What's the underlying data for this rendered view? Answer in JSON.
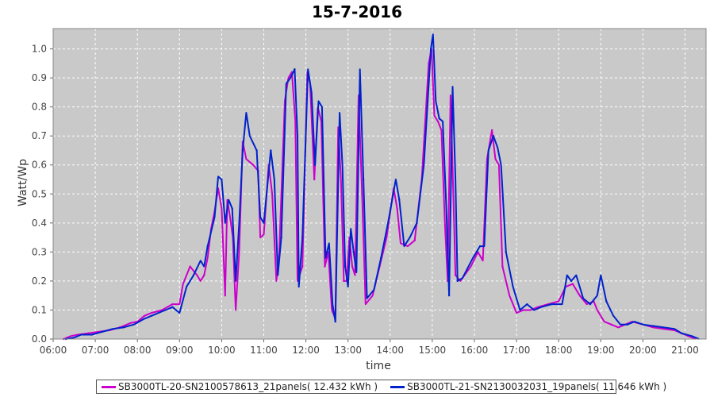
{
  "chart_data": {
    "type": "line",
    "title": "15-7-2016",
    "xlabel": "time",
    "ylabel": "Watt/Wp",
    "xlim": [
      "06:00",
      "21:30"
    ],
    "ylim": [
      0.0,
      1.07
    ],
    "xticks": [
      "06:00",
      "07:00",
      "08:00",
      "09:00",
      "10:00",
      "11:00",
      "12:00",
      "13:00",
      "14:00",
      "15:00",
      "16:00",
      "17:00",
      "18:00",
      "19:00",
      "20:00",
      "21:00"
    ],
    "yticks": [
      "0.0",
      "0.1",
      "0.2",
      "0.3",
      "0.4",
      "0.5",
      "0.6",
      "0.7",
      "0.8",
      "0.9",
      "1.0"
    ],
    "grid": true,
    "legend_position": "bottom",
    "series": [
      {
        "name": "SB3000TL-20-SN2100578613_21panels( 12.432 kWh )",
        "color": "#cc00cc",
        "points": [
          [
            "06:15",
            0.0
          ],
          [
            "06:25",
            0.01
          ],
          [
            "06:35",
            0.015
          ],
          [
            "06:50",
            0.02
          ],
          [
            "07:05",
            0.025
          ],
          [
            "07:20",
            0.03
          ],
          [
            "07:35",
            0.04
          ],
          [
            "07:50",
            0.055
          ],
          [
            "08:00",
            0.06
          ],
          [
            "08:10",
            0.08
          ],
          [
            "08:20",
            0.09
          ],
          [
            "08:35",
            0.1
          ],
          [
            "08:50",
            0.12
          ],
          [
            "09:00",
            0.12
          ],
          [
            "09:05",
            0.19
          ],
          [
            "09:15",
            0.25
          ],
          [
            "09:25",
            0.22
          ],
          [
            "09:30",
            0.2
          ],
          [
            "09:35",
            0.22
          ],
          [
            "09:40",
            0.28
          ],
          [
            "09:45",
            0.38
          ],
          [
            "09:50",
            0.44
          ],
          [
            "09:55",
            0.52
          ],
          [
            "10:00",
            0.45
          ],
          [
            "10:05",
            0.15
          ],
          [
            "10:08",
            0.48
          ],
          [
            "10:12",
            0.42
          ],
          [
            "10:16",
            0.35
          ],
          [
            "10:20",
            0.1
          ],
          [
            "10:25",
            0.3
          ],
          [
            "10:30",
            0.68
          ],
          [
            "10:35",
            0.62
          ],
          [
            "10:45",
            0.6
          ],
          [
            "10:52",
            0.58
          ],
          [
            "10:55",
            0.35
          ],
          [
            "11:00",
            0.36
          ],
          [
            "11:07",
            0.6
          ],
          [
            "11:12",
            0.5
          ],
          [
            "11:18",
            0.2
          ],
          [
            "11:22",
            0.3
          ],
          [
            "11:30",
            0.82
          ],
          [
            "11:35",
            0.9
          ],
          [
            "11:40",
            0.92
          ],
          [
            "11:45",
            0.75
          ],
          [
            "11:48",
            0.2
          ],
          [
            "11:55",
            0.25
          ],
          [
            "12:02",
            0.92
          ],
          [
            "12:06",
            0.88
          ],
          [
            "12:12",
            0.55
          ],
          [
            "12:17",
            0.8
          ],
          [
            "12:22",
            0.75
          ],
          [
            "12:27",
            0.25
          ],
          [
            "12:32",
            0.3
          ],
          [
            "12:37",
            0.1
          ],
          [
            "12:42",
            0.07
          ],
          [
            "12:46",
            0.73
          ],
          [
            "12:50",
            0.55
          ],
          [
            "12:54",
            0.2
          ],
          [
            "12:58",
            0.2
          ],
          [
            "13:02",
            0.35
          ],
          [
            "13:06",
            0.25
          ],
          [
            "13:10",
            0.22
          ],
          [
            "13:15",
            0.84
          ],
          [
            "13:20",
            0.5
          ],
          [
            "13:25",
            0.12
          ],
          [
            "13:35",
            0.15
          ],
          [
            "13:45",
            0.25
          ],
          [
            "13:55",
            0.35
          ],
          [
            "14:05",
            0.52
          ],
          [
            "14:10",
            0.45
          ],
          [
            "14:15",
            0.33
          ],
          [
            "14:25",
            0.32
          ],
          [
            "14:35",
            0.34
          ],
          [
            "14:45",
            0.55
          ],
          [
            "14:50",
            0.75
          ],
          [
            "14:55",
            0.95
          ],
          [
            "14:59",
            1.0
          ],
          [
            "15:03",
            0.77
          ],
          [
            "15:08",
            0.75
          ],
          [
            "15:13",
            0.72
          ],
          [
            "15:18",
            0.4
          ],
          [
            "15:22",
            0.2
          ],
          [
            "15:26",
            0.84
          ],
          [
            "15:30",
            0.5
          ],
          [
            "15:33",
            0.22
          ],
          [
            "15:40",
            0.2
          ],
          [
            "15:55",
            0.25
          ],
          [
            "16:05",
            0.3
          ],
          [
            "16:12",
            0.27
          ],
          [
            "16:18",
            0.62
          ],
          [
            "16:25",
            0.72
          ],
          [
            "16:30",
            0.62
          ],
          [
            "16:35",
            0.6
          ],
          [
            "16:40",
            0.25
          ],
          [
            "16:50",
            0.15
          ],
          [
            "17:00",
            0.09
          ],
          [
            "17:10",
            0.1
          ],
          [
            "17:20",
            0.1
          ],
          [
            "17:30",
            0.11
          ],
          [
            "17:45",
            0.12
          ],
          [
            "18:00",
            0.13
          ],
          [
            "18:10",
            0.18
          ],
          [
            "18:20",
            0.19
          ],
          [
            "18:30",
            0.15
          ],
          [
            "18:40",
            0.12
          ],
          [
            "18:50",
            0.13
          ],
          [
            "18:55",
            0.1
          ],
          [
            "19:05",
            0.06
          ],
          [
            "19:15",
            0.05
          ],
          [
            "19:25",
            0.04
          ],
          [
            "19:35",
            0.05
          ],
          [
            "19:45",
            0.06
          ],
          [
            "20:00",
            0.05
          ],
          [
            "20:15",
            0.04
          ],
          [
            "20:30",
            0.035
          ],
          [
            "20:45",
            0.03
          ],
          [
            "20:55",
            0.02
          ],
          [
            "21:05",
            0.01
          ],
          [
            "21:15",
            0.0
          ]
        ]
      },
      {
        "name": "SB3000TL-21-SN2130032031_19panels( 11.646 kWh )",
        "color": "#0022cc",
        "points": [
          [
            "06:18",
            0.0
          ],
          [
            "06:30",
            0.005
          ],
          [
            "06:40",
            0.015
          ],
          [
            "06:55",
            0.015
          ],
          [
            "07:10",
            0.025
          ],
          [
            "07:25",
            0.035
          ],
          [
            "07:40",
            0.04
          ],
          [
            "07:55",
            0.05
          ],
          [
            "08:10",
            0.07
          ],
          [
            "08:20",
            0.08
          ],
          [
            "08:30",
            0.09
          ],
          [
            "08:40",
            0.1
          ],
          [
            "08:50",
            0.11
          ],
          [
            "09:00",
            0.09
          ],
          [
            "09:10",
            0.18
          ],
          [
            "09:20",
            0.22
          ],
          [
            "09:30",
            0.27
          ],
          [
            "09:35",
            0.25
          ],
          [
            "09:40",
            0.32
          ],
          [
            "09:50",
            0.42
          ],
          [
            "09:55",
            0.56
          ],
          [
            "10:00",
            0.55
          ],
          [
            "10:05",
            0.4
          ],
          [
            "10:10",
            0.48
          ],
          [
            "10:15",
            0.45
          ],
          [
            "10:20",
            0.2
          ],
          [
            "10:25",
            0.4
          ],
          [
            "10:30",
            0.65
          ],
          [
            "10:35",
            0.78
          ],
          [
            "10:40",
            0.7
          ],
          [
            "10:50",
            0.65
          ],
          [
            "10:55",
            0.42
          ],
          [
            "11:00",
            0.4
          ],
          [
            "11:10",
            0.65
          ],
          [
            "11:15",
            0.55
          ],
          [
            "11:20",
            0.22
          ],
          [
            "11:25",
            0.35
          ],
          [
            "11:32",
            0.88
          ],
          [
            "11:38",
            0.9
          ],
          [
            "11:44",
            0.93
          ],
          [
            "11:48",
            0.7
          ],
          [
            "11:50",
            0.18
          ],
          [
            "11:55",
            0.35
          ],
          [
            "12:03",
            0.93
          ],
          [
            "12:08",
            0.85
          ],
          [
            "12:13",
            0.6
          ],
          [
            "12:18",
            0.82
          ],
          [
            "12:23",
            0.8
          ],
          [
            "12:28",
            0.28
          ],
          [
            "12:33",
            0.33
          ],
          [
            "12:38",
            0.12
          ],
          [
            "12:42",
            0.06
          ],
          [
            "12:48",
            0.78
          ],
          [
            "12:52",
            0.6
          ],
          [
            "12:56",
            0.25
          ],
          [
            "13:00",
            0.18
          ],
          [
            "13:04",
            0.38
          ],
          [
            "13:08",
            0.3
          ],
          [
            "13:12",
            0.23
          ],
          [
            "13:17",
            0.93
          ],
          [
            "13:22",
            0.55
          ],
          [
            "13:27",
            0.14
          ],
          [
            "13:37",
            0.17
          ],
          [
            "13:47",
            0.28
          ],
          [
            "13:57",
            0.4
          ],
          [
            "14:08",
            0.55
          ],
          [
            "14:13",
            0.48
          ],
          [
            "14:20",
            0.32
          ],
          [
            "14:28",
            0.35
          ],
          [
            "14:38",
            0.4
          ],
          [
            "14:48",
            0.6
          ],
          [
            "14:53",
            0.8
          ],
          [
            "14:58",
            1.0
          ],
          [
            "15:01",
            1.05
          ],
          [
            "15:05",
            0.82
          ],
          [
            "15:10",
            0.76
          ],
          [
            "15:15",
            0.75
          ],
          [
            "15:20",
            0.45
          ],
          [
            "15:24",
            0.15
          ],
          [
            "15:29",
            0.87
          ],
          [
            "15:33",
            0.55
          ],
          [
            "15:36",
            0.2
          ],
          [
            "15:43",
            0.21
          ],
          [
            "15:58",
            0.28
          ],
          [
            "16:08",
            0.32
          ],
          [
            "16:14",
            0.32
          ],
          [
            "16:20",
            0.65
          ],
          [
            "16:27",
            0.7
          ],
          [
            "16:33",
            0.66
          ],
          [
            "16:38",
            0.6
          ],
          [
            "16:45",
            0.3
          ],
          [
            "16:55",
            0.18
          ],
          [
            "17:05",
            0.1
          ],
          [
            "17:15",
            0.12
          ],
          [
            "17:25",
            0.1
          ],
          [
            "17:35",
            0.11
          ],
          [
            "17:50",
            0.12
          ],
          [
            "18:05",
            0.12
          ],
          [
            "18:12",
            0.22
          ],
          [
            "18:18",
            0.2
          ],
          [
            "18:25",
            0.22
          ],
          [
            "18:35",
            0.14
          ],
          [
            "18:45",
            0.12
          ],
          [
            "18:55",
            0.15
          ],
          [
            "19:00",
            0.22
          ],
          [
            "19:08",
            0.13
          ],
          [
            "19:18",
            0.08
          ],
          [
            "19:28",
            0.05
          ],
          [
            "19:38",
            0.05
          ],
          [
            "19:48",
            0.06
          ],
          [
            "20:00",
            0.05
          ],
          [
            "20:15",
            0.045
          ],
          [
            "20:30",
            0.04
          ],
          [
            "20:45",
            0.035
          ],
          [
            "20:55",
            0.02
          ],
          [
            "21:10",
            0.01
          ],
          [
            "21:20",
            0.0
          ]
        ]
      }
    ]
  }
}
